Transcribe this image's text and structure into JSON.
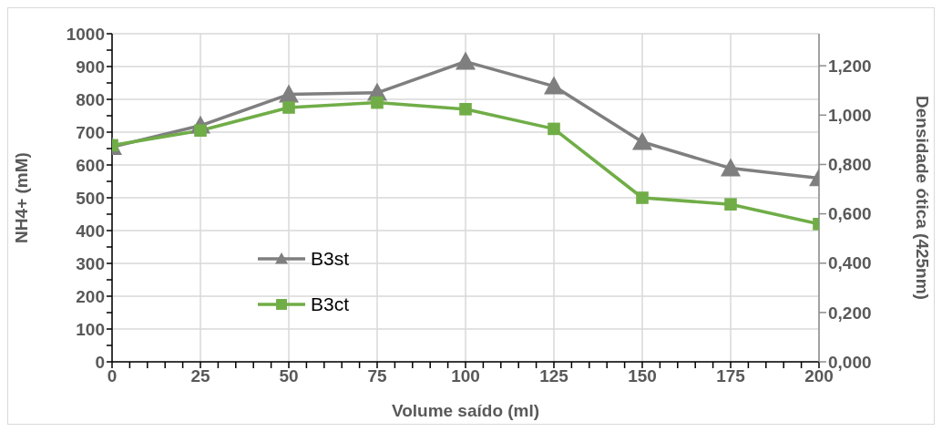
{
  "chart_data": {
    "type": "line",
    "xlabel": "Volume saído (ml)",
    "ylabel": "NH4+ (mM)",
    "y2label": "Densidade ótica (425nm)",
    "x": [
      0,
      25,
      50,
      75,
      100,
      125,
      150,
      175,
      200
    ],
    "series": [
      {
        "name": "B3st",
        "color": "#7f7f7f",
        "marker": "triangle",
        "values": [
          655,
          720,
          815,
          820,
          915,
          840,
          670,
          590,
          560
        ]
      },
      {
        "name": "B3ct",
        "color": "#70ad47",
        "marker": "square",
        "values": [
          660,
          705,
          775,
          790,
          770,
          710,
          500,
          480,
          420
        ]
      }
    ],
    "xlim": [
      0,
      200
    ],
    "xticks": [
      0,
      {
        "value": 5,
        "label": null
      },
      {
        "value": 10,
        "label": null
      },
      {
        "value": 15,
        "label": null
      },
      {
        "value": 20,
        "label": null
      },
      25,
      {
        "value": 30,
        "label": null
      },
      {
        "value": 35,
        "label": null
      },
      {
        "value": 40,
        "label": null
      },
      {
        "value": 45,
        "label": null
      },
      50,
      {
        "value": 55,
        "label": null
      },
      {
        "value": 60,
        "label": null
      },
      {
        "value": 65,
        "label": null
      },
      {
        "value": 70,
        "label": null
      },
      75,
      {
        "value": 80,
        "label": null
      },
      {
        "value": 85,
        "label": null
      },
      {
        "value": 90,
        "label": null
      },
      {
        "value": 95,
        "label": null
      },
      100,
      {
        "value": 105,
        "label": null
      },
      {
        "value": 110,
        "label": null
      },
      {
        "value": 115,
        "label": null
      },
      {
        "value": 120,
        "label": null
      },
      125,
      {
        "value": 130,
        "label": null
      },
      {
        "value": 135,
        "label": null
      },
      {
        "value": 140,
        "label": null
      },
      {
        "value": 145,
        "label": null
      },
      150,
      {
        "value": 155,
        "label": null
      },
      {
        "value": 160,
        "label": null
      },
      {
        "value": 165,
        "label": null
      },
      {
        "value": 170,
        "label": null
      },
      175,
      {
        "value": 180,
        "label": null
      },
      {
        "value": 185,
        "label": null
      },
      {
        "value": 190,
        "label": null
      },
      {
        "value": 195,
        "label": null
      },
      200
    ],
    "ylim": [
      0,
      1000
    ],
    "yticks": [
      0,
      {
        "value": 50,
        "label": null
      },
      100,
      {
        "value": 150,
        "label": null
      },
      200,
      {
        "value": 250,
        "label": null
      },
      300,
      {
        "value": 350,
        "label": null
      },
      400,
      {
        "value": 450,
        "label": null
      },
      500,
      {
        "value": 550,
        "label": null
      },
      600,
      {
        "value": 650,
        "label": null
      },
      700,
      {
        "value": 750,
        "label": null
      },
      800,
      {
        "value": 850,
        "label": null
      },
      900,
      {
        "value": 950,
        "label": null
      },
      1000
    ],
    "y2lim": [
      0,
      1.33
    ],
    "y2ticks": [
      {
        "value": 0,
        "label": "0,000"
      },
      {
        "value": 0.2,
        "label": "0,200"
      },
      {
        "value": 0.4,
        "label": "0,400"
      },
      {
        "value": 0.6,
        "label": "0,600"
      },
      {
        "value": 0.8,
        "label": "0,800"
      },
      {
        "value": 1,
        "label": "1,000"
      },
      {
        "value": 1.2,
        "label": "1,200"
      }
    ],
    "grid": true,
    "legend": "left",
    "line_style": "solid"
  }
}
